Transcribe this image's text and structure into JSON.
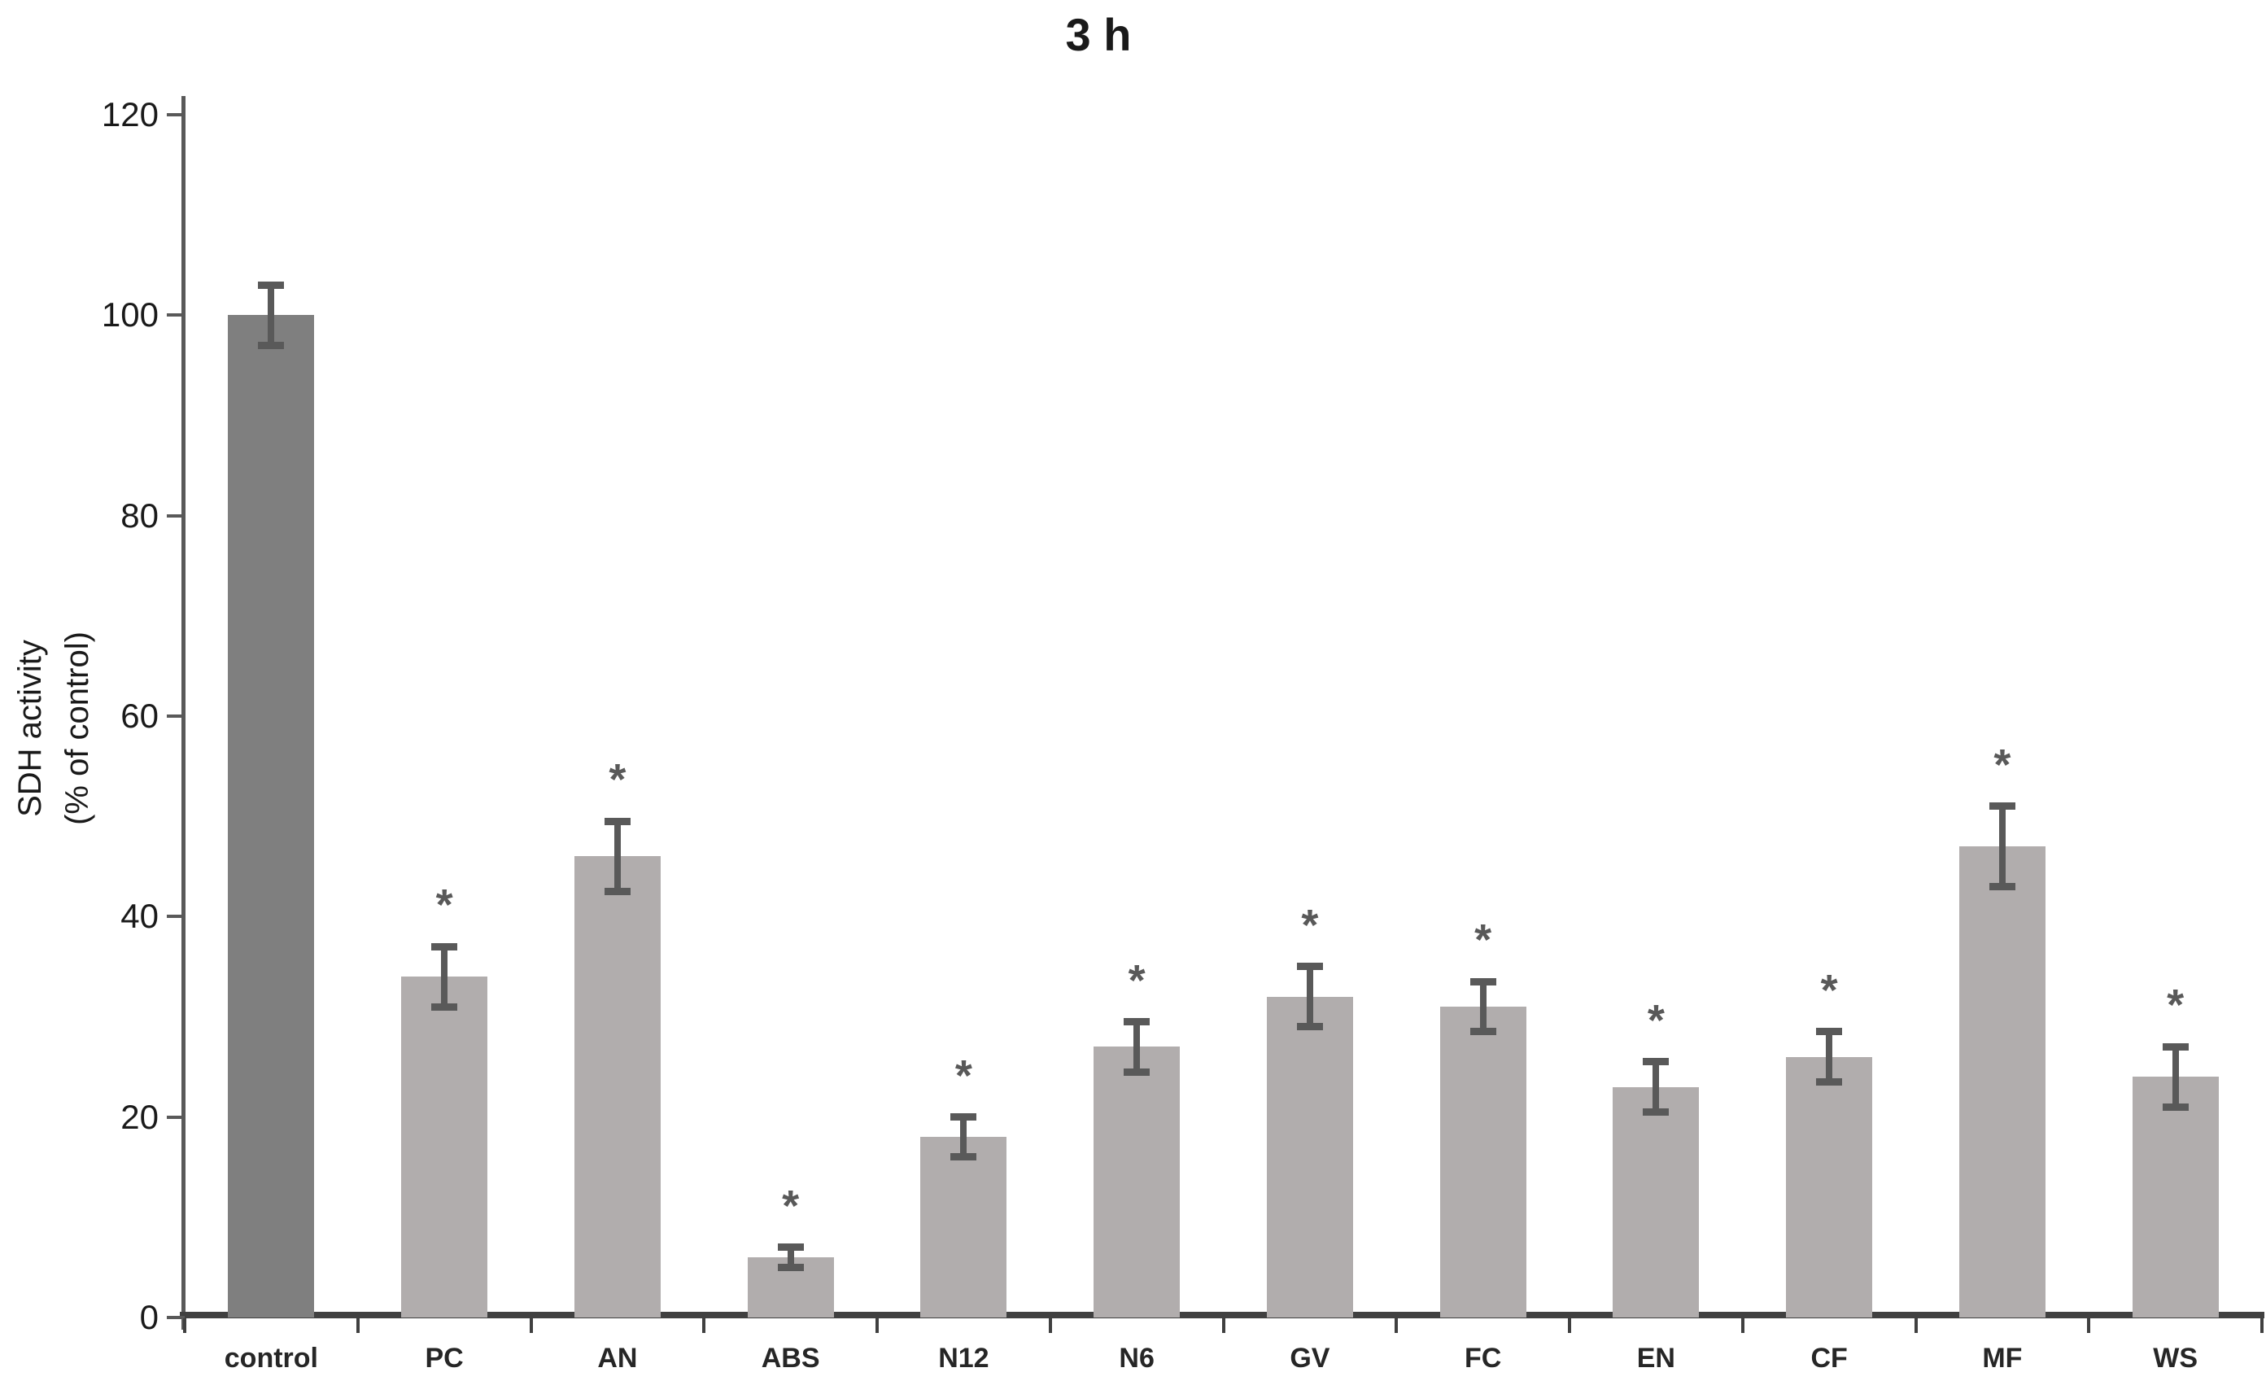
{
  "chart_data": {
    "type": "bar",
    "title": "3 h",
    "ylabel_line1": "SDH activity",
    "ylabel_line2": "(% of control)",
    "xlabel": "",
    "categories": [
      "control",
      "PC",
      "AN",
      "ABS",
      "N12",
      "N6",
      "GV",
      "FC",
      "EN",
      "CF",
      "MF",
      "WS"
    ],
    "values": [
      100,
      34,
      46,
      6,
      18,
      27,
      32,
      31,
      23,
      26,
      47,
      24
    ],
    "errors": [
      3,
      3,
      3.5,
      1,
      2,
      2.5,
      3,
      2.5,
      2.5,
      2.5,
      4,
      3
    ],
    "significant": [
      false,
      true,
      true,
      true,
      true,
      true,
      true,
      true,
      true,
      true,
      true,
      true
    ],
    "significance_marker": "*",
    "ylim": [
      0,
      120
    ],
    "yticks": [
      0,
      20,
      40,
      60,
      80,
      100,
      120
    ],
    "grid": false,
    "legend": false,
    "colors": {
      "control_bar": "#7f7f7f",
      "treatment_bar": "#b1adad",
      "error_bar": "#595959",
      "significance": "#595959",
      "axis": "#595959",
      "baseline": "#404040"
    }
  }
}
